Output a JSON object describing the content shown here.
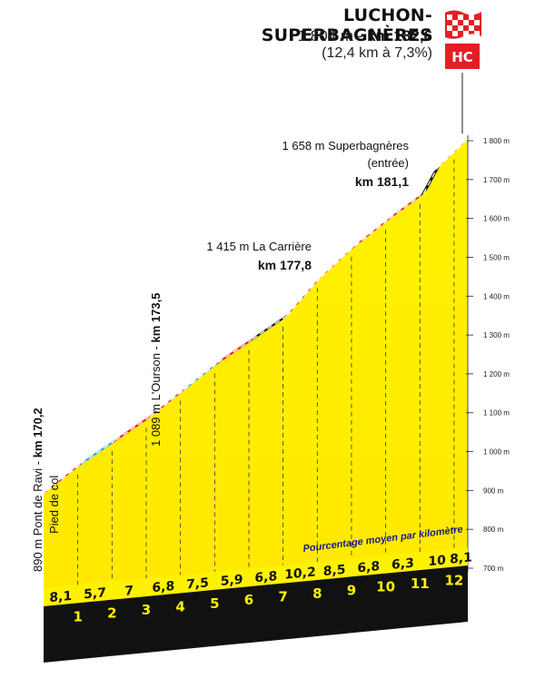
{
  "header": {
    "title": "LUCHON-SUPERBAGNÈRES",
    "summit_altitude": "1 804 m",
    "summit_separator": " - ",
    "summit_km": "km 182,6",
    "climb_summary": "(12,4 km à 7,3%)",
    "category_badge": "HC"
  },
  "waypoints": {
    "start": {
      "altitude": "890 m Pont de Ravi - ",
      "km": "km 170,2",
      "note": "Pied de col"
    },
    "ourson": {
      "altitude": "1 089 m L'Ourson - ",
      "km": "km 173,5"
    },
    "carriere": {
      "altitude": "1 415 m La Carrière",
      "km": "km 177,8"
    },
    "superbagneres": {
      "altitude": "1 658 m Superbagnères",
      "note": "(entrée)",
      "km": "km 181,1"
    }
  },
  "annotation": "Pourcentage moyen par kilomètre",
  "colors": {
    "fill": "#fff200",
    "steep": "#e31e24",
    "moderate": "#29a8e0",
    "very_steep": "#1a1a1a",
    "band": "#111111",
    "base": "#f5a800"
  },
  "chart_data": {
    "type": "area",
    "title": "LUCHON-SUPERBAGNÈRES",
    "x_unit": "km",
    "y_unit": "m",
    "ylim": [
      700,
      1800
    ],
    "y_ticks": [
      "700 m",
      "800 m",
      "900 m",
      "1 000 m",
      "1 100 m",
      "1 200 m",
      "1 300 m",
      "1 400 m",
      "1 500 m",
      "1 600 m",
      "1 700 m",
      "1 800 m"
    ],
    "y_tick_values": [
      700,
      800,
      900,
      1000,
      1100,
      1200,
      1300,
      1400,
      1500,
      1600,
      1700,
      1800
    ],
    "km_markers": [
      "1",
      "2",
      "3",
      "4",
      "5",
      "6",
      "7",
      "8",
      "9",
      "10",
      "11",
      "12"
    ],
    "segment_gradients": [
      "8,1",
      "5,7",
      "7",
      "6,8",
      "7,5",
      "5,9",
      "6,8",
      "10,2",
      "8,5",
      "6,8",
      "6,3",
      "10",
      "8,1"
    ],
    "profile": [
      {
        "x": 0.0,
        "y": 890
      },
      {
        "x": 1.0,
        "y": 960
      },
      {
        "x": 2.0,
        "y": 1020
      },
      {
        "x": 3.0,
        "y": 1080
      },
      {
        "x": 4.0,
        "y": 1150
      },
      {
        "x": 5.0,
        "y": 1220
      },
      {
        "x": 6.0,
        "y": 1280
      },
      {
        "x": 7.0,
        "y": 1340
      },
      {
        "x": 8.0,
        "y": 1440
      },
      {
        "x": 9.0,
        "y": 1520
      },
      {
        "x": 10.0,
        "y": 1590
      },
      {
        "x": 11.0,
        "y": 1655
      },
      {
        "x": 11.4,
        "y": 1720
      },
      {
        "x": 12.4,
        "y": 1804
      }
    ],
    "grid": true
  }
}
